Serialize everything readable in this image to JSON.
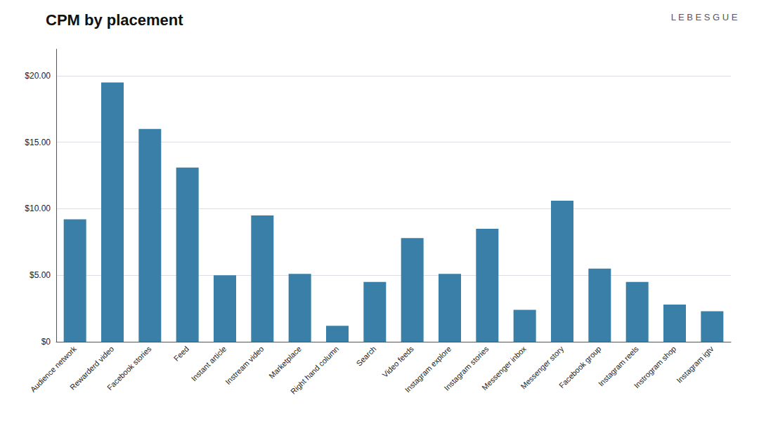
{
  "chart_data": {
    "type": "bar",
    "title": "CPM by placement",
    "categories": [
      "Audience network",
      "Rewarderd video",
      "Facebook stories",
      "Feed",
      "Instant article",
      "Instream video",
      "Marketplace",
      "Right hand column",
      "Search",
      "Video feeds",
      "Instagram explore",
      "Instagram stories",
      "Messenger inbox",
      "Messenger story",
      "Facebook group",
      "Instagram reels",
      "Instrogram shop",
      "Instagram igtv"
    ],
    "values": [
      9.2,
      19.5,
      16.0,
      13.1,
      5.0,
      9.5,
      5.1,
      1.2,
      4.5,
      7.8,
      5.1,
      8.5,
      2.4,
      10.6,
      5.5,
      4.5,
      2.8,
      2.3
    ],
    "color": "#3a7fa8",
    "ylim": [
      0,
      22
    ],
    "yticks": [
      {
        "value": 0,
        "label": "$0"
      },
      {
        "value": 5,
        "label": "$5.00"
      },
      {
        "value": 10,
        "label": "$10.00"
      },
      {
        "value": 15,
        "label": "$15.00"
      },
      {
        "value": 20,
        "label": "$20.00"
      }
    ],
    "grid": true,
    "annotations": [
      "L E B E S G U E"
    ]
  }
}
